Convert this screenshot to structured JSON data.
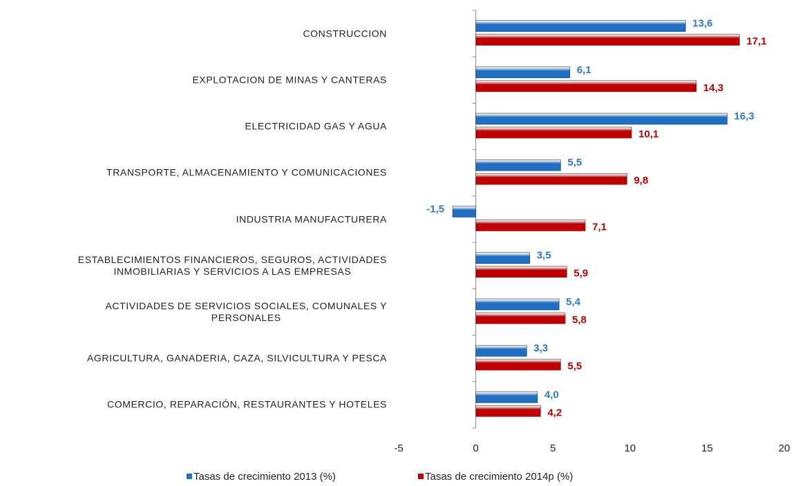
{
  "chart_data": {
    "type": "hbar",
    "categories": [
      "CONSTRUCCION",
      "EXPLOTACION DE MINAS Y CANTERAS",
      "ELECTRICIDAD GAS Y AGUA",
      "TRANSPORTE, ALMACENAMIENTO Y COMUNICACIONES",
      "INDUSTRIA MANUFACTURERA",
      "ESTABLECIMIENTOS FINANCIEROS, SEGUROS, ACTIVIDADES\nINMOBILIARIAS Y SERVICIOS A LAS EMPRESAS",
      "ACTIVIDADES DE SERVICIOS SOCIALES, COMUNALES Y\nPERSONALES",
      "AGRICULTURA, GANADERIA, CAZA, SILVICULTURA Y PESCA",
      "COMERCIO, REPARACIÓN, RESTAURANTES Y HOTELES"
    ],
    "series": [
      {
        "name": "Tasas de crecimiento 2013 (%)",
        "color": "#1f6fc5",
        "label_color": "#2e7bc4",
        "values": [
          13.6,
          6.1,
          16.3,
          5.5,
          -1.5,
          3.5,
          5.4,
          3.3,
          4.0
        ],
        "value_labels": [
          "13,6",
          "6,1",
          "16,3",
          "5,5",
          "-1,5",
          "3,5",
          "5,4",
          "3,3",
          "4,0"
        ]
      },
      {
        "name": "Tasas de crecimiento 2014p (%)",
        "color": "#c00000",
        "label_color": "#c00000",
        "values": [
          17.1,
          14.3,
          10.1,
          9.8,
          7.1,
          5.9,
          5.8,
          5.5,
          4.2
        ],
        "value_labels": [
          "17,1",
          "14,3",
          "10,1",
          "9,8",
          "7,1",
          "5,9",
          "5,8",
          "5,5",
          "4,2"
        ]
      }
    ],
    "xlim": [
      -5,
      20
    ],
    "xticks": [
      -5,
      0,
      5,
      10,
      15,
      20
    ],
    "legend": "bottom"
  }
}
